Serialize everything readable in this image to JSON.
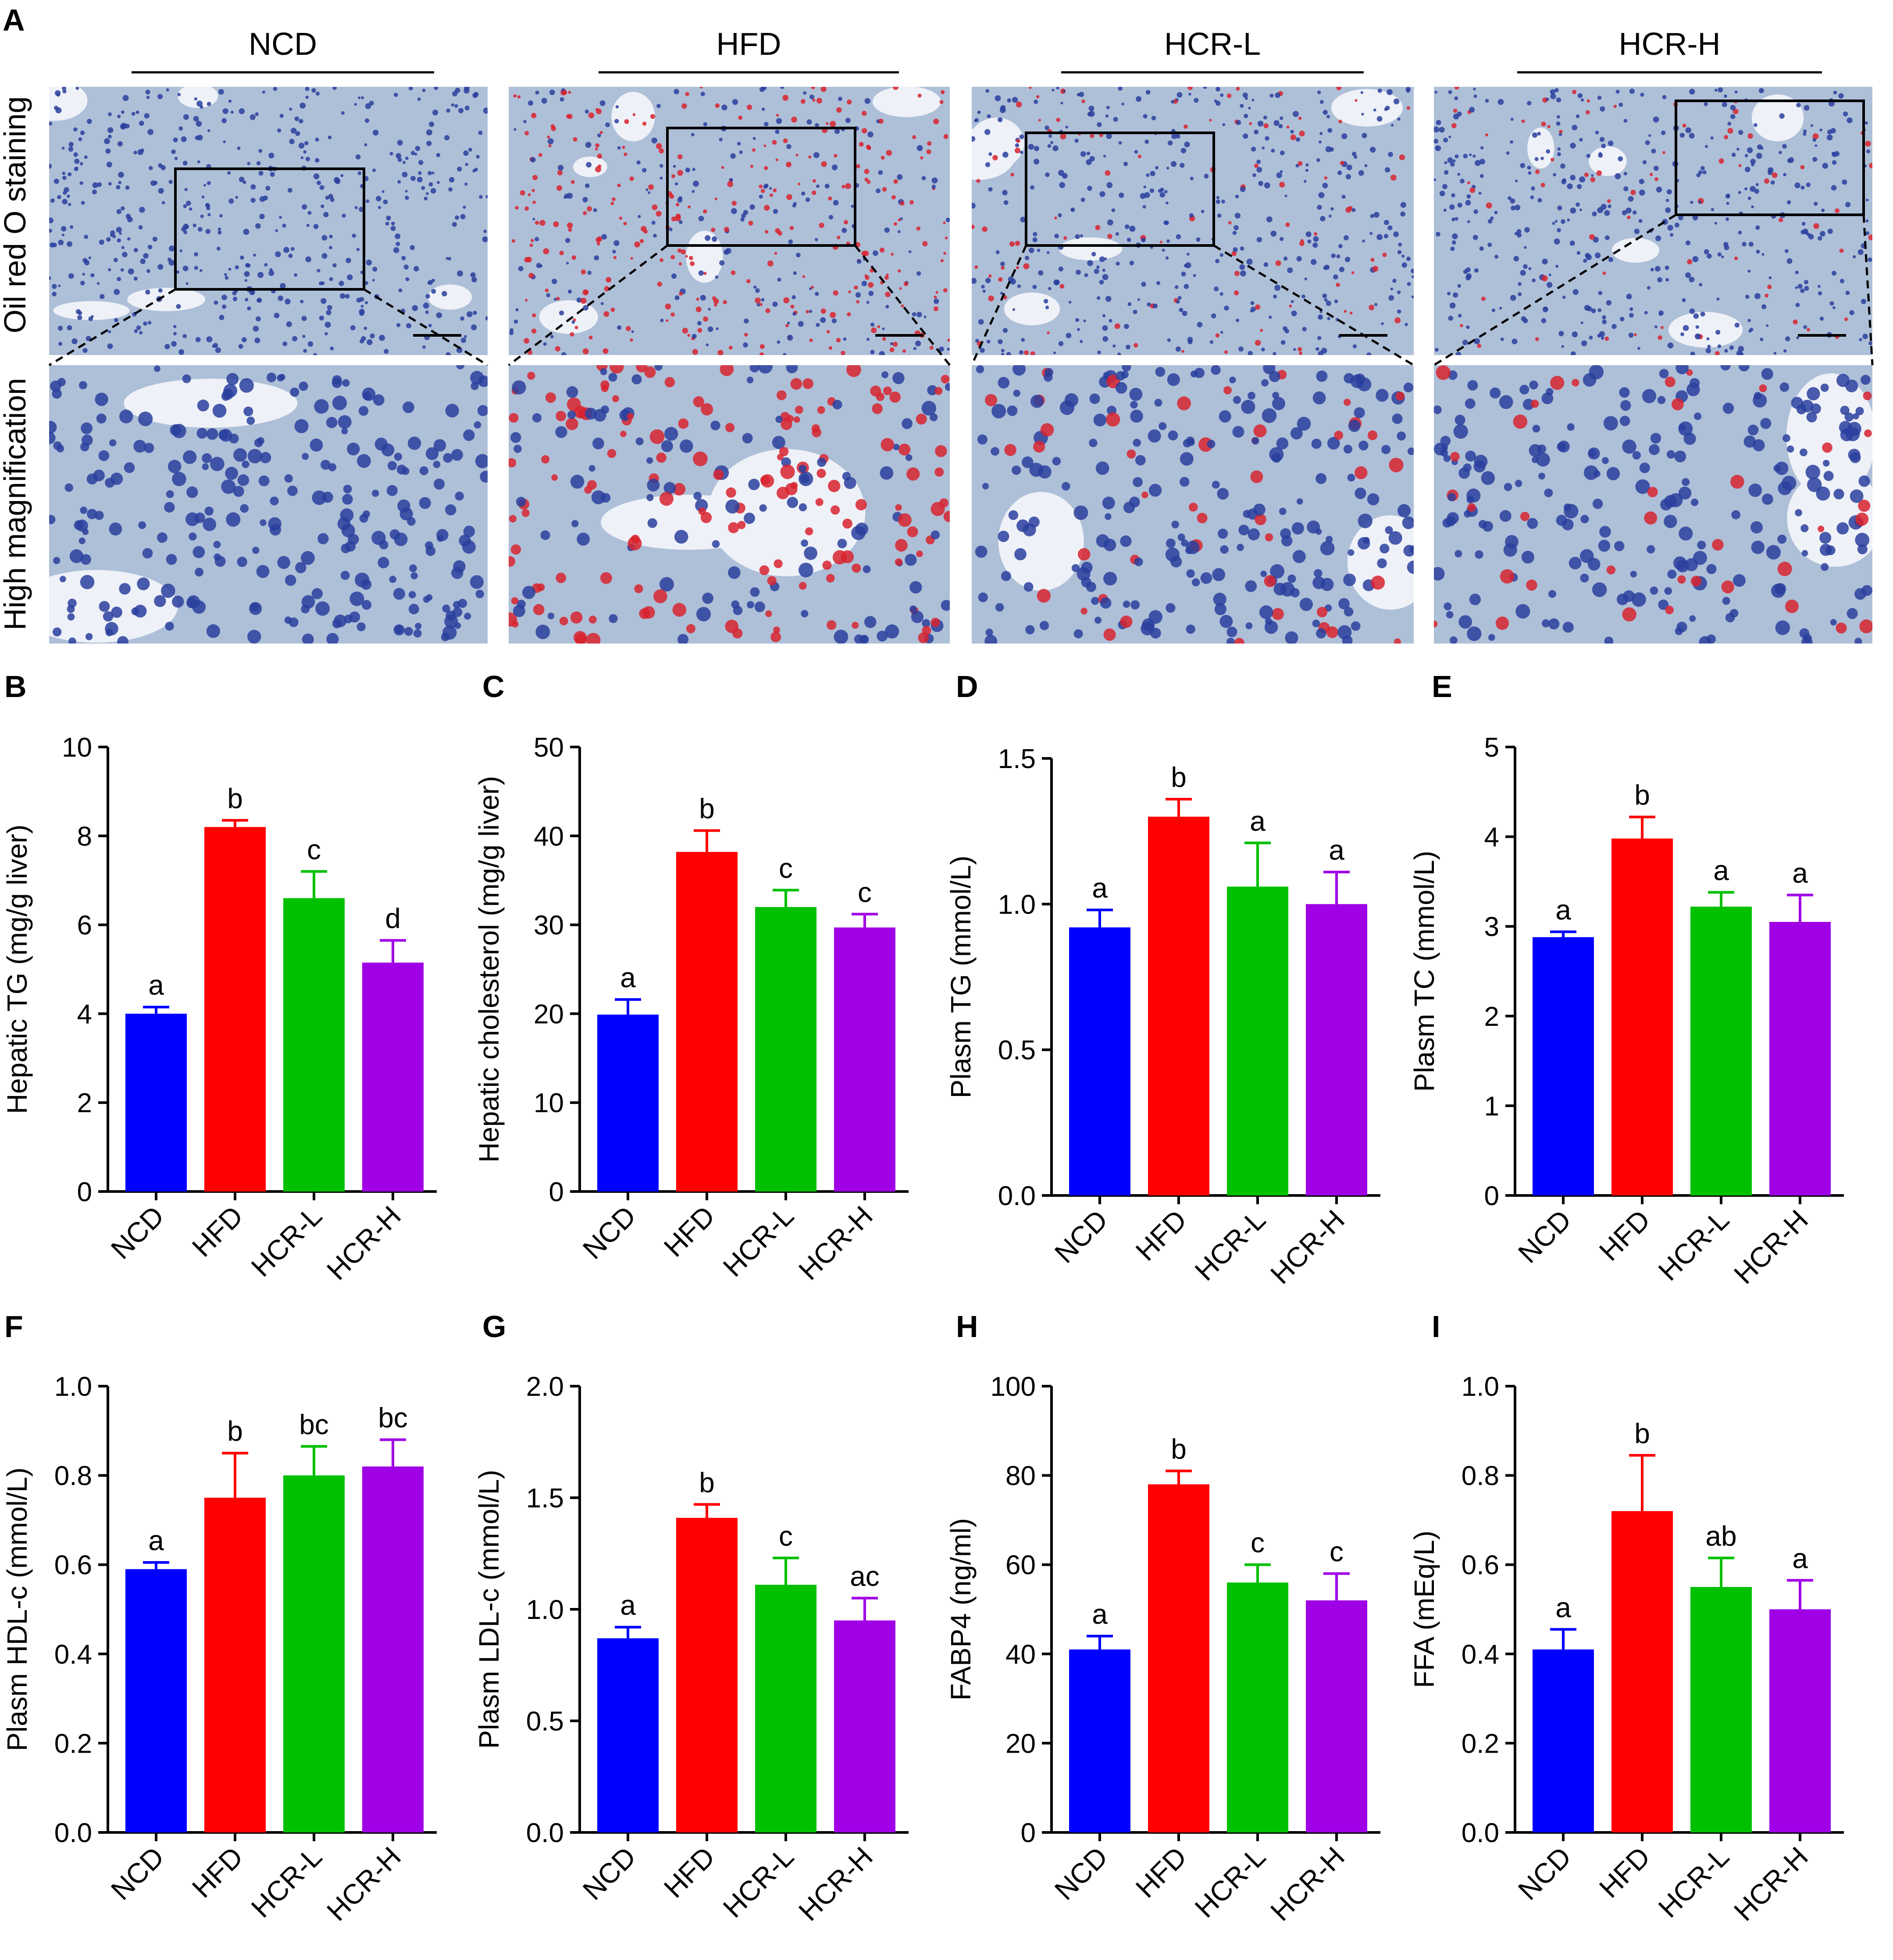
{
  "colors": {
    "NCD": "#0000ff",
    "HFD": "#ff0000",
    "HCR-L": "#00c000",
    "HCR-H": "#a000e6",
    "tissue_blue": "#aebfd8",
    "tissue_bg": "#eef1f7",
    "lipid_red": "#d8232f",
    "nuclei": "#2a3f9e"
  },
  "panel_a": {
    "letter": "A",
    "row_labels": [
      "Oil red O staining",
      "High magnification"
    ],
    "columns": [
      {
        "label": "NCD",
        "lipid_level": 0.0
      },
      {
        "label": "HFD",
        "lipid_level": 1.0
      },
      {
        "label": "HCR-L",
        "lipid_level": 0.35
      },
      {
        "label": "HCR-H",
        "lipid_level": 0.25
      }
    ]
  },
  "chart_data": [
    {
      "panel": "B",
      "type": "bar",
      "categories": [
        "NCD",
        "HFD",
        "HCR-L",
        "HCR-H"
      ],
      "values": [
        4.0,
        8.2,
        6.6,
        5.15
      ],
      "errors": [
        0.15,
        0.15,
        0.6,
        0.5
      ],
      "sig_labels": [
        "a",
        "b",
        "c",
        "d"
      ],
      "ylabel": "Hepatic TG (mg/g liver)",
      "ylim": [
        0,
        10
      ],
      "yticks": [
        "0",
        "2",
        "4",
        "6",
        "8",
        "10"
      ]
    },
    {
      "panel": "C",
      "type": "bar",
      "categories": [
        "NCD",
        "HFD",
        "HCR-L",
        "HCR-H"
      ],
      "values": [
        19.9,
        38.2,
        32.0,
        29.7
      ],
      "errors": [
        1.7,
        2.4,
        1.9,
        1.5
      ],
      "sig_labels": [
        "a",
        "b",
        "c",
        "c"
      ],
      "ylabel": "Hepatic cholesterol (mg/g liver)",
      "ylim": [
        0,
        50
      ],
      "yticks": [
        "0",
        "10",
        "20",
        "30",
        "40",
        "50"
      ]
    },
    {
      "panel": "D",
      "type": "bar",
      "categories": [
        "NCD",
        "HFD",
        "HCR-L",
        "HCR-H"
      ],
      "values": [
        0.92,
        1.3,
        1.06,
        1.0
      ],
      "errors": [
        0.06,
        0.06,
        0.15,
        0.11
      ],
      "sig_labels": [
        "a",
        "b",
        "a",
        "a"
      ],
      "ylabel": "Plasm TG (mmol/L)",
      "ylim": [
        0,
        1.5
      ],
      "yticks": [
        "0.0",
        "0.5",
        "1.0",
        "1.5"
      ]
    },
    {
      "panel": "E",
      "type": "bar",
      "categories": [
        "NCD",
        "HFD",
        "HCR-L",
        "HCR-H"
      ],
      "values": [
        2.88,
        3.98,
        3.22,
        3.05
      ],
      "errors": [
        0.06,
        0.24,
        0.16,
        0.3
      ],
      "sig_labels": [
        "a",
        "b",
        "a",
        "a"
      ],
      "ylabel": "Plasm TC (mmol/L)",
      "ylim": [
        0,
        5
      ],
      "yticks": [
        "0",
        "1",
        "2",
        "3",
        "4",
        "5"
      ]
    },
    {
      "panel": "F",
      "type": "bar",
      "categories": [
        "NCD",
        "HFD",
        "HCR-L",
        "HCR-H"
      ],
      "values": [
        0.59,
        0.75,
        0.8,
        0.82
      ],
      "errors": [
        0.015,
        0.1,
        0.065,
        0.06
      ],
      "sig_labels": [
        "a",
        "b",
        "bc",
        "bc"
      ],
      "ylabel": "Plasm HDL-c (mmol/L)",
      "ylim": [
        0,
        1.0
      ],
      "yticks": [
        "0.0",
        "0.2",
        "0.4",
        "0.6",
        "0.8",
        "1.0"
      ]
    },
    {
      "panel": "G",
      "type": "bar",
      "categories": [
        "NCD",
        "HFD",
        "HCR-L",
        "HCR-H"
      ],
      "values": [
        0.87,
        1.41,
        1.11,
        0.95
      ],
      "errors": [
        0.05,
        0.06,
        0.12,
        0.1
      ],
      "sig_labels": [
        "a",
        "b",
        "c",
        "ac"
      ],
      "ylabel": "Plasm LDL-c (mmol/L)",
      "ylim": [
        0,
        2.0
      ],
      "yticks": [
        "0.0",
        "0.5",
        "1.0",
        "1.5",
        "2.0"
      ]
    },
    {
      "panel": "H",
      "type": "bar",
      "categories": [
        "NCD",
        "HFD",
        "HCR-L",
        "HCR-H"
      ],
      "values": [
        41.0,
        78.0,
        56.0,
        52.0
      ],
      "errors": [
        3.0,
        3.0,
        4.0,
        6.0
      ],
      "sig_labels": [
        "a",
        "b",
        "c",
        "c"
      ],
      "ylabel": "FABP4 (ng/ml)",
      "ylim": [
        0,
        100
      ],
      "yticks": [
        "0",
        "20",
        "40",
        "60",
        "80",
        "100"
      ]
    },
    {
      "panel": "I",
      "type": "bar",
      "categories": [
        "NCD",
        "HFD",
        "HCR-L",
        "HCR-H"
      ],
      "values": [
        0.41,
        0.72,
        0.55,
        0.5
      ],
      "errors": [
        0.045,
        0.125,
        0.065,
        0.065
      ],
      "sig_labels": [
        "a",
        "b",
        "ab",
        "a"
      ],
      "ylabel": "FFA (mEq/L)",
      "ylim": [
        0,
        1.0
      ],
      "yticks": [
        "0.0",
        "0.2",
        "0.4",
        "0.6",
        "0.8",
        "1.0"
      ]
    }
  ]
}
